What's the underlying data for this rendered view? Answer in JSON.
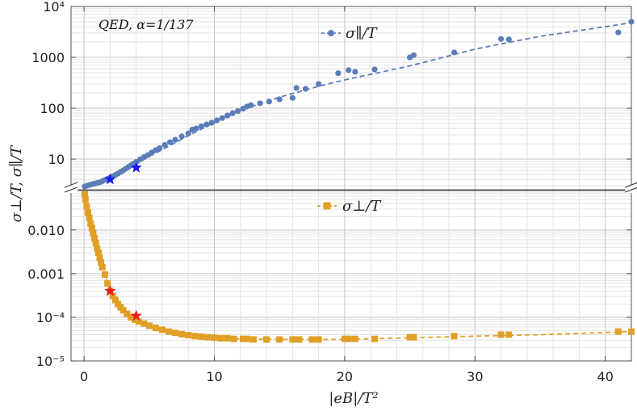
{
  "chart_data": {
    "type": "scatter",
    "annotation": "QED, α=1/137",
    "xlabel": "|eB|/T²",
    "ylabel": "σ⊥/T, σ∥/T",
    "xlim": [
      -1,
      42
    ],
    "x_ticks": [
      "0",
      "10",
      "20",
      "30",
      "40"
    ],
    "x_tick_values": [
      0,
      10,
      20,
      30,
      40
    ],
    "grid": true,
    "panels": [
      {
        "name": "top",
        "yscale": "log",
        "ylim": [
          2.5,
          10000
        ],
        "y_ticks": [
          "10",
          "100",
          "1000",
          "10⁴"
        ],
        "y_tick_values": [
          10,
          100,
          1000,
          10000
        ],
        "legend": "σ∥/T",
        "legend_position": "top-center",
        "color": "#5b7db8",
        "marker": "circle",
        "series": {
          "name": "σ∥/T",
          "x": [
            0.05,
            0.2,
            0.4,
            0.6,
            0.8,
            1.0,
            1.2,
            1.4,
            1.6,
            1.8,
            2.0,
            2.2,
            2.4,
            2.6,
            2.8,
            3.0,
            3.2,
            3.4,
            3.6,
            3.8,
            4.0,
            4.3,
            4.6,
            4.9,
            5.2,
            5.5,
            5.8,
            6.2,
            6.6,
            7.0,
            7.5,
            8.0,
            8.3,
            8.6,
            9.0,
            9.4,
            9.8,
            10.2,
            10.6,
            11.0,
            11.4,
            11.8,
            12.2,
            12.5,
            12.8,
            13.5,
            14.2,
            15.0,
            16.0,
            16.3,
            17.0,
            18.0,
            19.5,
            20.3,
            20.8,
            22.3,
            25.0,
            25.3,
            28.4,
            32.0,
            32.6,
            41.0,
            42.0
          ],
          "y": [
            2.9,
            3.0,
            3.1,
            3.2,
            3.3,
            3.4,
            3.5,
            3.7,
            3.9,
            4.1,
            4.3,
            4.6,
            4.9,
            5.2,
            5.6,
            6.0,
            6.5,
            7.0,
            7.6,
            8.2,
            8.8,
            9.9,
            11,
            12,
            13.5,
            15,
            16.5,
            19,
            21.5,
            24,
            28,
            32,
            38,
            40,
            44,
            48,
            52,
            58,
            64,
            72,
            80,
            88,
            98,
            108,
            115,
            125,
            135,
            150,
            160,
            250,
            240,
            300,
            490,
            560,
            520,
            580,
            1000,
            1100,
            1250,
            2300,
            2250,
            3100,
            5000
          ]
        },
        "fit_curve": {
          "x": [
            0,
            1,
            2,
            3,
            4,
            5,
            6,
            8,
            10,
            12,
            15,
            18,
            20,
            25,
            30,
            35,
            40,
            42
          ],
          "y": [
            2.9,
            3.3,
            4.1,
            5.7,
            8.0,
            11.3,
            15.3,
            29,
            52,
            91,
            165,
            270,
            360,
            680,
            1450,
            2600,
            4000,
            4800
          ]
        },
        "highlights": {
          "color": "#1a1aee",
          "marker": "star",
          "x": [
            2,
            4
          ],
          "y": [
            4.0,
            6.8
          ]
        }
      },
      {
        "name": "bottom",
        "yscale": "log",
        "ylim": [
          1e-05,
          0.08
        ],
        "y_ticks": [
          "10⁻⁵",
          "10⁻⁴",
          "0.001",
          "0.010"
        ],
        "y_tick_values": [
          1e-05,
          0.0001,
          0.001,
          0.01
        ],
        "legend": "σ⊥/T",
        "legend_position": "top-center",
        "color": "#e19f25",
        "marker": "square",
        "series": {
          "name": "σ⊥/T",
          "x": [
            0.05,
            0.1,
            0.2,
            0.3,
            0.4,
            0.5,
            0.6,
            0.7,
            0.8,
            0.9,
            1.0,
            1.1,
            1.2,
            1.3,
            1.4,
            1.6,
            1.8,
            2.0,
            2.2,
            2.4,
            2.6,
            2.8,
            3.0,
            3.3,
            3.6,
            3.9,
            4.2,
            4.6,
            5.0,
            5.5,
            6.0,
            6.5,
            7.0,
            7.5,
            8.0,
            8.5,
            9.0,
            9.5,
            10.0,
            10.5,
            11.0,
            11.5,
            12.2,
            12.5,
            13.0,
            14.0,
            15.0,
            16.0,
            16.5,
            17.5,
            18.0,
            20.0,
            20.3,
            20.8,
            22.3,
            25.0,
            25.3,
            28.4,
            32.0,
            32.6,
            41.0,
            42.0
          ],
          "y": [
            0.065,
            0.05,
            0.035,
            0.025,
            0.019,
            0.014,
            0.011,
            0.0085,
            0.0065,
            0.005,
            0.0038,
            0.003,
            0.0023,
            0.0018,
            0.0014,
            0.00095,
            0.0006,
            0.0004,
            0.00031,
            0.00025,
            0.0002,
            0.00017,
            0.000145,
            0.00012,
            0.0001,
            8.8e-05,
            8e-05,
            7.2e-05,
            6.4e-05,
            5.7e-05,
            5.2e-05,
            4.7e-05,
            4.4e-05,
            4.1e-05,
            3.9e-05,
            3.7e-05,
            3.6e-05,
            3.5e-05,
            3.4e-05,
            3.3e-05,
            3.3e-05,
            3.2e-05,
            3.2e-05,
            3.2e-05,
            3.1e-05,
            3.1e-05,
            3.1e-05,
            3.1e-05,
            3.1e-05,
            3.1e-05,
            3.1e-05,
            3.2e-05,
            3.2e-05,
            3.2e-05,
            3.2e-05,
            3.5e-05,
            3.5e-05,
            3.7e-05,
            4e-05,
            4e-05,
            4.7e-05,
            4.7e-05
          ]
        },
        "fit_curve": {
          "x": [
            0,
            0.3,
            0.6,
            1,
            1.5,
            2,
            2.5,
            3,
            4,
            5,
            6,
            8,
            10,
            12,
            15,
            20,
            25,
            30,
            35,
            42
          ],
          "y": [
            0.07,
            0.025,
            0.011,
            0.0038,
            0.0012,
            0.0004,
            0.00021,
            0.000145,
            8e-05,
            6.4e-05,
            5.2e-05,
            3.9e-05,
            3.4e-05,
            3.2e-05,
            3.1e-05,
            3.1e-05,
            3.4e-05,
            3.7e-05,
            4e-05,
            4.7e-05
          ]
        },
        "highlights": {
          "color": "#e82020",
          "marker": "star",
          "x": [
            2,
            4
          ],
          "y": [
            0.0004,
            0.000108
          ]
        }
      }
    ]
  }
}
